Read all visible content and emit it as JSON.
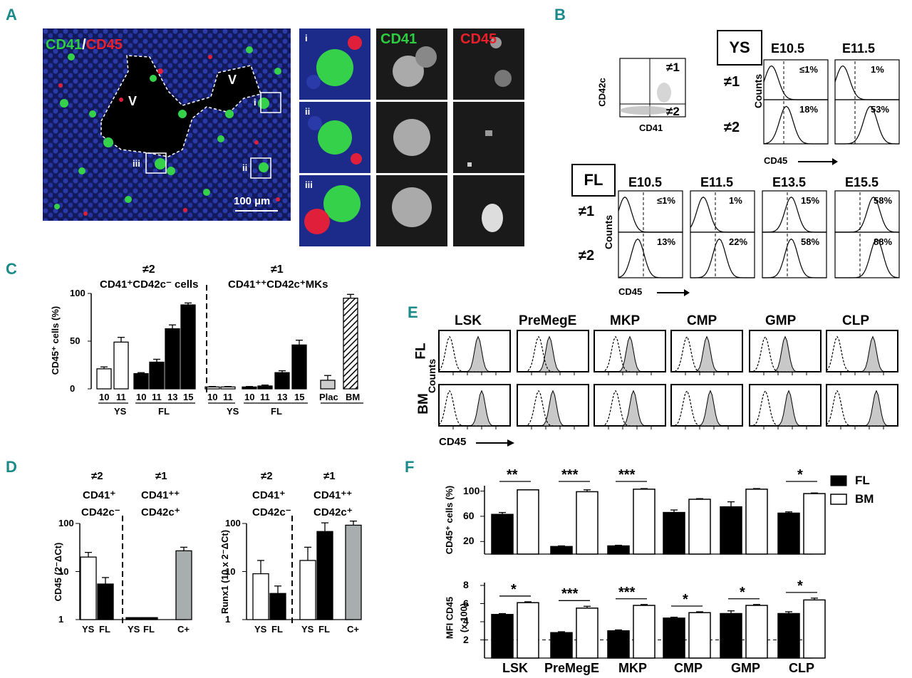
{
  "panels": {
    "a": "A",
    "b": "B",
    "c": "C",
    "d": "D",
    "e": "E",
    "f": "F"
  },
  "panel_a": {
    "title_green": "CD41",
    "title_sep": "/",
    "title_red": "CD45",
    "vessel": "V",
    "scale": "100 µm",
    "insets": [
      "i",
      "ii",
      "iii"
    ],
    "inset_headers": {
      "cd41": "CD41",
      "cd45": "CD45"
    }
  },
  "panel_b": {
    "gate": {
      "ylabel": "CD42c",
      "xlabel": "CD41",
      "g1": "≠1",
      "g2": "≠2"
    },
    "ys_label": "YS",
    "fl_label": "FL",
    "ys_ages": [
      "E10.5",
      "E11.5"
    ],
    "fl_ages": [
      "E10.5",
      "E11.5",
      "E13.5",
      "E15.5"
    ],
    "gate1": "≠1",
    "gate2": "≠2",
    "counts": "Counts",
    "cd45": "CD45",
    "ys_pct_1": [
      "≤1%",
      "1%"
    ],
    "ys_pct_2": [
      "18%",
      "53%"
    ],
    "fl_pct_1": [
      "≤1%",
      "1%",
      "15%",
      "58%"
    ],
    "fl_pct_2": [
      "13%",
      "22%",
      "58%",
      "88%"
    ]
  },
  "panel_c": {
    "g2": "≠2",
    "g2_desc": "CD41⁺CD42c⁻ cells",
    "g1": "≠1",
    "g1_desc": "CD41⁺⁺CD42c⁺MKs",
    "ylabel": "CD45⁺ cells (%)",
    "yticks": [
      "0",
      "50",
      "100"
    ],
    "xticks": [
      "10",
      "11",
      "10",
      "11",
      "13",
      "15",
      "10",
      "11",
      "10",
      "11",
      "13",
      "15",
      "Plac",
      "BM"
    ],
    "groups": [
      "YS",
      "FL",
      "YS",
      "FL"
    ]
  },
  "panel_d": {
    "g2": "≠2",
    "g1": "≠1",
    "cd41p": "CD41⁺",
    "cd42cm": "CD42c⁻",
    "cd41pp": "CD41⁺⁺",
    "cd42cp": "CD42c⁺",
    "left_ylabel": "CD45  (2⁻ΔCt)",
    "right_ylabel": "Runx1  (10 x 2⁻ΔCt)",
    "yticks": [
      "1",
      "10",
      "100"
    ],
    "xticks": [
      "YS",
      "FL",
      "YS",
      "FL",
      "C+"
    ]
  },
  "panel_e": {
    "columns": [
      "LSK",
      "PreMegE",
      "MKP",
      "CMP",
      "GMP",
      "CLP"
    ],
    "rows": [
      "FL",
      "BM"
    ],
    "counts": "Counts",
    "xlabel": "CD45"
  },
  "panel_f": {
    "top_ylabel": "CD45⁺ cells  (%)",
    "top_yticks": [
      "20",
      "60",
      "100"
    ],
    "bot_ylabel": "MFI CD45",
    "bot_ylabel2": "(x 100)",
    "bot_yticks": [
      "2",
      "4",
      "6",
      "8"
    ],
    "categories": [
      "LSK",
      "PreMegE",
      "MKP",
      "CMP",
      "GMP",
      "CLP"
    ],
    "top_sig": [
      "**",
      "***",
      "***",
      "",
      "",
      "*"
    ],
    "bot_sig": [
      "*",
      "***",
      "***",
      "*",
      "*",
      "*"
    ],
    "legend": [
      "FL",
      "BM"
    ]
  },
  "chart_data": [
    {
      "type": "bar",
      "title": "",
      "ylabel": "CD45⁺ cells (%)",
      "ylim": [
        0,
        100
      ],
      "categories": [
        "YS 10",
        "YS 11",
        "FL 10",
        "FL 11",
        "FL 13",
        "FL 15",
        "YS 10",
        "YS 11",
        "FL 10",
        "FL 11",
        "FL 13",
        "FL 15",
        "Plac",
        "BM"
      ],
      "values": [
        21,
        49,
        16,
        28,
        63,
        88,
        2,
        2,
        2,
        3,
        17,
        46,
        9,
        95
      ],
      "errors": [
        2,
        5,
        1,
        3,
        4,
        2,
        0.5,
        0.5,
        0.5,
        1,
        2,
        5,
        5,
        4
      ]
    },
    {
      "type": "bar",
      "ylabel": "CD45  (2⁻ΔCt)",
      "yscale": "log",
      "ylim": [
        1,
        100
      ],
      "categories": [
        "YS",
        "FL",
        "YS",
        "FL",
        "C+"
      ],
      "values": [
        20,
        5.5,
        1.1,
        1.1,
        27
      ],
      "errors": [
        5,
        2,
        0,
        0,
        5
      ]
    },
    {
      "type": "bar",
      "ylabel": "Runx1  (10 x 2⁻ΔCt)",
      "yscale": "log",
      "ylim": [
        1,
        100
      ],
      "categories": [
        "YS",
        "FL",
        "YS",
        "FL",
        "C+"
      ],
      "values": [
        9,
        3.5,
        17,
        68,
        92
      ],
      "errors": [
        8,
        1.5,
        15,
        35,
        20
      ]
    },
    {
      "type": "bar",
      "ylabel": "CD45⁺ cells  (%)",
      "ylim": [
        0,
        100
      ],
      "categories": [
        "LSK",
        "PreMegE",
        "MKP",
        "CMP",
        "GMP",
        "CLP"
      ],
      "series": [
        {
          "name": "FL",
          "values": [
            63,
            12,
            13,
            66,
            75,
            65
          ],
          "errors": [
            3,
            1,
            1,
            4,
            8,
            2
          ]
        },
        {
          "name": "BM",
          "values": [
            102,
            99,
            103,
            87,
            103,
            96
          ],
          "errors": [
            0,
            3,
            1,
            1,
            1,
            1
          ]
        }
      ]
    },
    {
      "type": "bar",
      "ylabel": "MFI CD45 (x 100)",
      "ylim": [
        0,
        8
      ],
      "categories": [
        "LSK",
        "PreMegE",
        "MKP",
        "CMP",
        "GMP",
        "CLP"
      ],
      "series": [
        {
          "name": "FL",
          "values": [
            4.8,
            2.8,
            3.0,
            4.4,
            4.9,
            4.9
          ],
          "errors": [
            0.1,
            0.1,
            0.1,
            0.1,
            0.3,
            0.2
          ]
        },
        {
          "name": "BM",
          "values": [
            6.1,
            5.5,
            5.8,
            5.0,
            5.8,
            6.4
          ],
          "errors": [
            0.1,
            0.2,
            0.1,
            0.1,
            0.1,
            0.2
          ]
        }
      ]
    }
  ]
}
